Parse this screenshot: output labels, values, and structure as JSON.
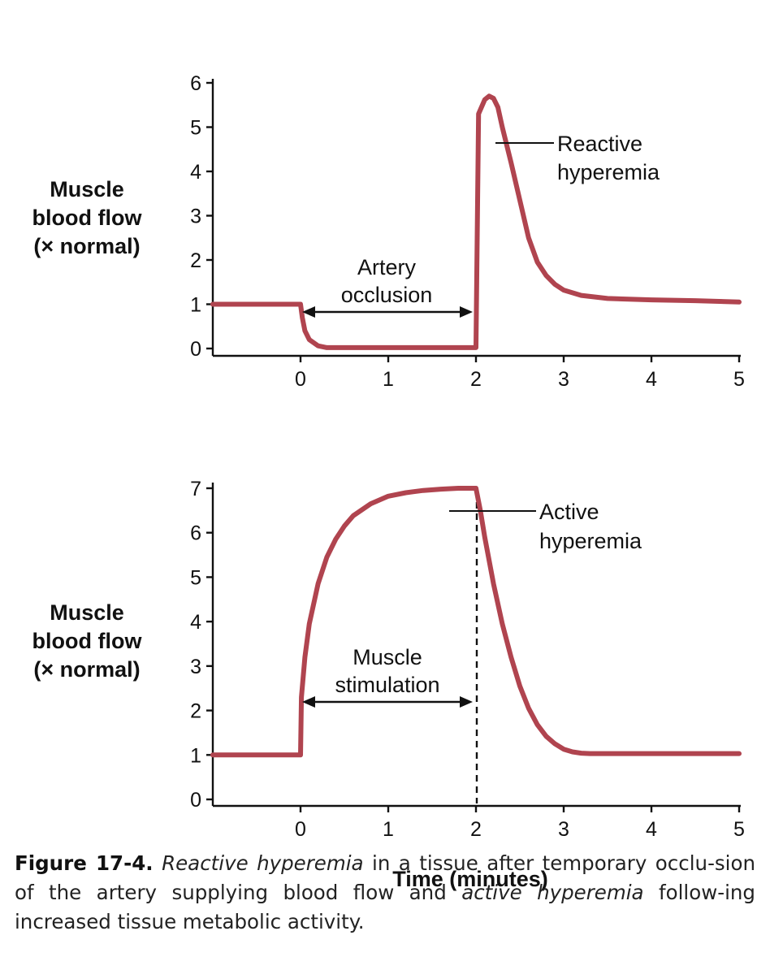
{
  "chart_data": [
    {
      "type": "line",
      "id": "reactive",
      "ylabel_lines": [
        "Muscle",
        "blood flow",
        "(× normal)"
      ],
      "xlim": [
        -1,
        5
      ],
      "ylim": [
        0,
        6
      ],
      "xticks": [
        0,
        1,
        2,
        3,
        4,
        5
      ],
      "yticks": [
        0,
        1,
        2,
        3,
        4,
        5,
        6
      ],
      "series": [
        {
          "name": "Muscle blood flow",
          "color": "#b0444f",
          "x": [
            -1,
            0,
            0.02,
            0.05,
            0.1,
            0.2,
            0.3,
            0.5,
            1.0,
            1.5,
            1.98,
            2.0,
            2.03,
            2.1,
            2.15,
            2.2,
            2.25,
            2.3,
            2.4,
            2.5,
            2.6,
            2.7,
            2.8,
            2.9,
            3.0,
            3.2,
            3.5,
            4.0,
            4.5,
            5.0
          ],
          "values": [
            1,
            1,
            0.7,
            0.4,
            0.2,
            0.06,
            0.02,
            0.02,
            0.02,
            0.02,
            0.02,
            0.02,
            5.3,
            5.62,
            5.7,
            5.65,
            5.45,
            5.0,
            4.2,
            3.35,
            2.5,
            1.95,
            1.65,
            1.45,
            1.32,
            1.2,
            1.13,
            1.1,
            1.08,
            1.05
          ]
        }
      ],
      "annotations": {
        "region_label": [
          "Artery",
          "occlusion"
        ],
        "peak_label": [
          "Reactive",
          "hyperemia"
        ],
        "arrow_range": [
          0,
          2
        ]
      }
    },
    {
      "type": "line",
      "id": "active",
      "ylabel_lines": [
        "Muscle",
        "blood flow",
        "(× normal)"
      ],
      "xlim": [
        -1,
        5
      ],
      "ylim": [
        0,
        7
      ],
      "xticks": [
        0,
        1,
        2,
        3,
        4,
        5
      ],
      "yticks": [
        0,
        1,
        2,
        3,
        4,
        5,
        6,
        7
      ],
      "series": [
        {
          "name": "Muscle blood flow",
          "color": "#b0444f",
          "x": [
            -1,
            0,
            0.01,
            0.05,
            0.1,
            0.2,
            0.3,
            0.4,
            0.5,
            0.6,
            0.8,
            1.0,
            1.2,
            1.4,
            1.6,
            1.8,
            2.0,
            2.05,
            2.1,
            2.2,
            2.3,
            2.4,
            2.5,
            2.6,
            2.7,
            2.8,
            2.9,
            3.0,
            3.1,
            3.2,
            3.3,
            3.5,
            4.0,
            5.0
          ],
          "values": [
            1,
            1,
            2.3,
            3.2,
            3.95,
            4.85,
            5.45,
            5.85,
            6.15,
            6.38,
            6.65,
            6.82,
            6.9,
            6.95,
            6.98,
            7.0,
            7.0,
            6.5,
            5.9,
            4.85,
            3.95,
            3.2,
            2.55,
            2.05,
            1.68,
            1.42,
            1.25,
            1.13,
            1.07,
            1.04,
            1.03,
            1.03,
            1.03,
            1.03
          ]
        }
      ],
      "annotations": {
        "region_label": [
          "Muscle",
          "stimulation"
        ],
        "peak_label": [
          "Active",
          "hyperemia"
        ],
        "arrow_range": [
          0,
          2
        ],
        "dashed_x": 2
      },
      "xlabel": "Time (minutes)"
    }
  ],
  "caption": {
    "figure_label": "Figure 17-4.",
    "term1": "Reactive hyperemia",
    "text1": " in a tissue after temporary occlu-sion of the artery supplying blood flow and ",
    "term2": "active hyperemia",
    "text2": " follow-ing increased tissue metabolic activity."
  }
}
